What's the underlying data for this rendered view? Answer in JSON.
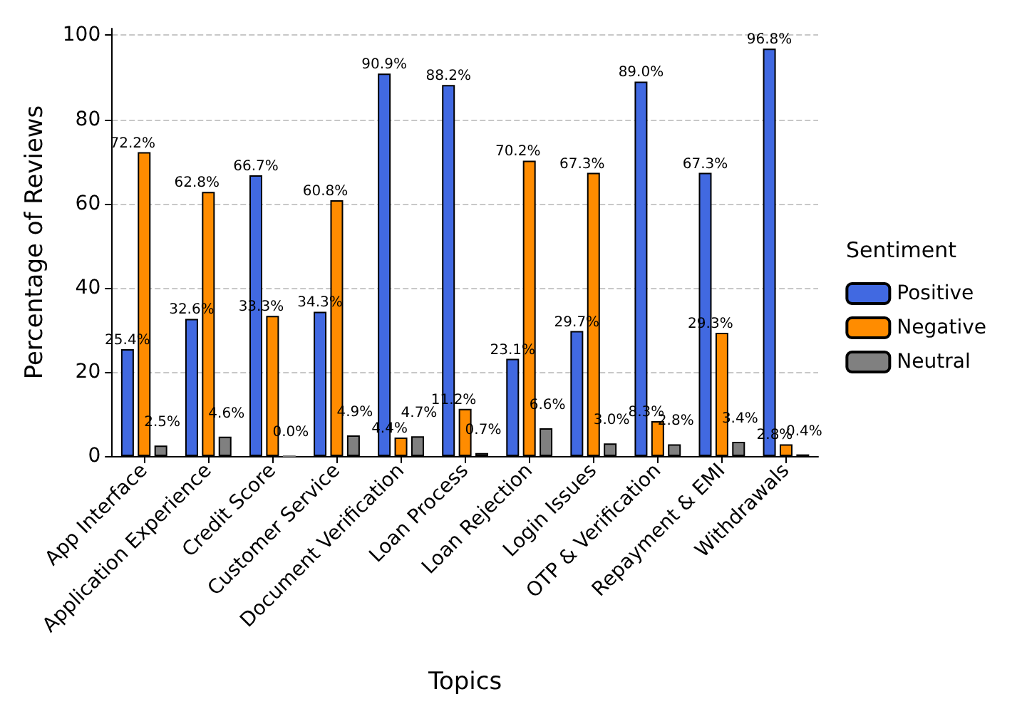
{
  "chart_data": {
    "type": "bar",
    "xlabel": "Topics",
    "ylabel": "Percentage of Reviews",
    "legend_title": "Sentiment",
    "legend": "right",
    "categories": [
      "App Interface",
      "Application Experience",
      "Credit Score",
      "Customer Service",
      "Document Verification",
      "Loan Process",
      "Loan Rejection",
      "Login Issues",
      "OTP & Verification",
      "Repayment & EMI",
      "Withdrawals"
    ],
    "series": [
      {
        "name": "Positive",
        "color": "#4169e1",
        "values": [
          25.4,
          32.6,
          66.7,
          34.3,
          90.9,
          88.2,
          23.1,
          29.7,
          89.0,
          67.3,
          96.8
        ],
        "value_labels": [
          "25.4%",
          "32.6%",
          "66.7%",
          "34.3%",
          "90.9%",
          "88.2%",
          "23.1%",
          "29.7%",
          "89.0%",
          "67.3%",
          "96.8%"
        ]
      },
      {
        "name": "Negative",
        "color": "#ff8c00",
        "values": [
          72.2,
          62.8,
          33.3,
          60.8,
          4.4,
          11.2,
          70.2,
          67.3,
          8.3,
          29.3,
          2.8
        ],
        "value_labels": [
          "72.2%",
          "62.8%",
          "33.3%",
          "60.8%",
          "4.4%",
          "11.2%",
          "70.2%",
          "67.3%",
          "8.3%",
          "29.3%",
          "2.8%"
        ]
      },
      {
        "name": "Neutral",
        "color": "#808080",
        "values": [
          2.5,
          4.6,
          0.0,
          4.9,
          4.7,
          0.7,
          6.6,
          3.0,
          2.8,
          3.4,
          0.4
        ],
        "value_labels": [
          "2.5%",
          "4.6%",
          "0.0%",
          "4.9%",
          "4.7%",
          "0.7%",
          "6.6%",
          "3.0%",
          "2.8%",
          "3.4%",
          "0.4%"
        ]
      }
    ],
    "ylim": [
      0,
      101.6
    ],
    "yticks": [
      0,
      20,
      40,
      60,
      80,
      100
    ],
    "grid": "y"
  }
}
